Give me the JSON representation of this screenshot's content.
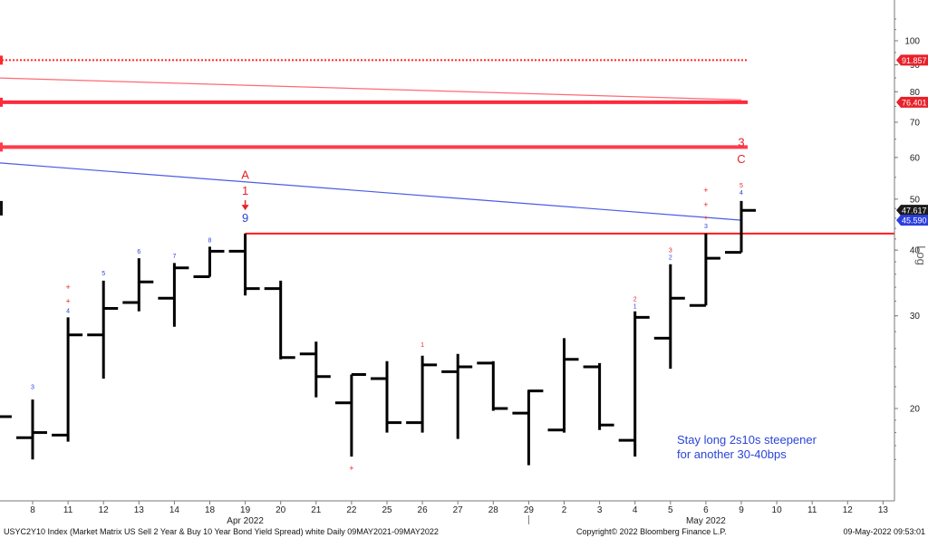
{
  "chart_data": {
    "type": "ohlc",
    "y_scale": "log",
    "y_axis_label": "Log",
    "ylim": [
      15,
      115
    ],
    "y_ticks": [
      20,
      30,
      40,
      50,
      60,
      70,
      80,
      90,
      100
    ],
    "x_labels": [
      "8",
      "11",
      "12",
      "13",
      "14",
      "18",
      "19",
      "20",
      "21",
      "22",
      "25",
      "26",
      "27",
      "28",
      "29",
      "2",
      "3",
      "4",
      "5",
      "6",
      "9",
      "10",
      "11",
      "12",
      "13"
    ],
    "month_labels": [
      {
        "text": "Apr 2022",
        "at_index": 6
      },
      {
        "text": "May 2022",
        "at_index": 19
      }
    ],
    "bars": [
      {
        "i": -1,
        "o": 19.3,
        "h": 19.3,
        "l": 19.3,
        "c": 19.3
      },
      {
        "i": 0,
        "o": 17.6,
        "h": 20.8,
        "l": 16.0,
        "c": 18.0
      },
      {
        "i": 1,
        "o": 17.8,
        "h": 29.8,
        "l": 17.3,
        "c": 27.6
      },
      {
        "i": 2,
        "o": 27.6,
        "h": 35.0,
        "l": 22.8,
        "c": 31.0
      },
      {
        "i": 3,
        "o": 31.8,
        "h": 38.6,
        "l": 30.6,
        "c": 34.8
      },
      {
        "i": 4,
        "o": 32.4,
        "h": 37.8,
        "l": 28.6,
        "c": 37.0
      },
      {
        "i": 5,
        "o": 35.6,
        "h": 40.6,
        "l": 35.6,
        "c": 39.8
      },
      {
        "i": 6,
        "o": 39.8,
        "h": 43.0,
        "l": 32.8,
        "c": 33.8
      },
      {
        "i": 7,
        "o": 33.8,
        "h": 35.0,
        "l": 24.8,
        "c": 25.0
      },
      {
        "i": 8,
        "o": 25.4,
        "h": 26.8,
        "l": 21.0,
        "c": 23.0
      },
      {
        "i": 9,
        "o": 20.5,
        "h": 23.2,
        "l": 16.2,
        "c": 23.2
      },
      {
        "i": 10,
        "o": 22.8,
        "h": 24.6,
        "l": 18.0,
        "c": 18.8
      },
      {
        "i": 11,
        "o": 18.8,
        "h": 25.2,
        "l": 18.0,
        "c": 24.2
      },
      {
        "i": 12,
        "o": 23.5,
        "h": 25.4,
        "l": 17.5,
        "c": 24.0
      },
      {
        "i": 13,
        "o": 24.4,
        "h": 24.6,
        "l": 19.8,
        "c": 20.0
      },
      {
        "i": 14,
        "o": 19.6,
        "h": 21.7,
        "l": 15.6,
        "c": 21.6
      },
      {
        "i": 15,
        "o": 18.2,
        "h": 27.2,
        "l": 18.0,
        "c": 24.8
      },
      {
        "i": 16,
        "o": 24.0,
        "h": 24.4,
        "l": 18.2,
        "c": 18.6
      },
      {
        "i": 17,
        "o": 17.4,
        "h": 30.6,
        "l": 16.2,
        "c": 29.8
      },
      {
        "i": 18,
        "o": 27.2,
        "h": 37.6,
        "l": 23.8,
        "c": 32.4
      },
      {
        "i": 19,
        "o": 31.4,
        "h": 43.0,
        "l": 31.4,
        "c": 38.6
      },
      {
        "i": 20,
        "o": 39.6,
        "h": 49.6,
        "l": 39.6,
        "c": 47.6
      }
    ],
    "horizontal_lines": [
      {
        "level": 91.857,
        "color": "#ff2a2a",
        "style": "dotted",
        "label": "91.857"
      },
      {
        "level": 76.401,
        "color": "#ff2a3c",
        "style": "thick",
        "label": "76.401"
      },
      {
        "level": 62.8,
        "color": "#ff3b4a",
        "style": "thick",
        "label": ""
      },
      {
        "level": 43.0,
        "color": "#ff1a1a",
        "style": "solid",
        "label": ""
      }
    ],
    "trendlines": [
      {
        "from": {
          "i": -1.8,
          "v": 85.3
        },
        "to": {
          "i": 20.0,
          "v": 77.2
        },
        "color": "#ff6a74"
      },
      {
        "from": {
          "i": -1.8,
          "v": 59.2
        },
        "to": {
          "i": 20.0,
          "v": 45.6
        },
        "color": "#4a5ce8"
      }
    ],
    "price_tags": [
      {
        "value": 91.857,
        "label": "91.857",
        "color": "#e8202a"
      },
      {
        "value": 76.401,
        "label": "76.401",
        "color": "#e8202a"
      },
      {
        "value": 47.617,
        "label": "47.617",
        "color": "#1a1a1a"
      },
      {
        "value": 45.59,
        "label": "45.590",
        "color": "#2b3fe0"
      }
    ],
    "annotations": [
      {
        "text": "A",
        "i": 6,
        "v": 54.6,
        "color": "#e8202a",
        "size": 13
      },
      {
        "text": "1",
        "i": 6,
        "v": 51.0,
        "color": "#e8202a",
        "size": 13
      },
      {
        "text": "9",
        "i": 6,
        "v": 45.3,
        "color": "#2b3fe0",
        "size": 13
      },
      {
        "text": "3",
        "i": 20,
        "v": 63.0,
        "color": "#e8202a",
        "size": 13
      },
      {
        "text": "C",
        "i": 20,
        "v": 58.6,
        "color": "#e8202a",
        "size": 13
      },
      {
        "text": "3",
        "i": 0,
        "v": 21.8,
        "color": "#2b3fe0",
        "size": 7
      },
      {
        "text": "+",
        "i": 1,
        "v": 33.6,
        "color": "#e8202a",
        "size": 9
      },
      {
        "text": "+",
        "i": 1,
        "v": 31.6,
        "color": "#e8202a",
        "size": 9
      },
      {
        "text": "4",
        "i": 1,
        "v": 30.4,
        "color": "#2b3fe0",
        "size": 7
      },
      {
        "text": "5",
        "i": 2,
        "v": 35.8,
        "color": "#2b3fe0",
        "size": 7
      },
      {
        "text": "6",
        "i": 3,
        "v": 39.4,
        "color": "#2b3fe0",
        "size": 7
      },
      {
        "text": "7",
        "i": 4,
        "v": 38.6,
        "color": "#2b3fe0",
        "size": 7
      },
      {
        "text": "8",
        "i": 5,
        "v": 41.4,
        "color": "#2b3fe0",
        "size": 7
      },
      {
        "text": "+",
        "i": 9,
        "v": 15.2,
        "color": "#e8202a",
        "size": 9
      },
      {
        "text": "1",
        "i": 11,
        "v": 26.2,
        "color": "#e8202a",
        "size": 7
      },
      {
        "text": "2",
        "i": 17,
        "v": 32.0,
        "color": "#e8202a",
        "size": 7
      },
      {
        "text": "1",
        "i": 17,
        "v": 31.0,
        "color": "#2b3fe0",
        "size": 7
      },
      {
        "text": "3",
        "i": 18,
        "v": 39.6,
        "color": "#e8202a",
        "size": 7
      },
      {
        "text": "2",
        "i": 18,
        "v": 38.4,
        "color": "#2b3fe0",
        "size": 7
      },
      {
        "text": "+",
        "i": 19,
        "v": 51.4,
        "color": "#e8202a",
        "size": 9
      },
      {
        "text": "+",
        "i": 19,
        "v": 48.2,
        "color": "#e8202a",
        "size": 9
      },
      {
        "text": "+",
        "i": 19,
        "v": 45.6,
        "color": "#e8202a",
        "size": 8
      },
      {
        "text": "3",
        "i": 19,
        "v": 44.0,
        "color": "#2b3fe0",
        "size": 7
      },
      {
        "text": "5",
        "i": 20,
        "v": 52.6,
        "color": "#e8202a",
        "size": 7
      },
      {
        "text": "4",
        "i": 20,
        "v": 51.0,
        "color": "#2b3fe0",
        "size": 7
      }
    ],
    "arrow": {
      "i": 6,
      "v": 48.2,
      "color": "#e8202a"
    },
    "text_note": [
      "Stay long 2s10s steepener",
      "for another 30-40bps"
    ],
    "grid": false,
    "legend": "none"
  },
  "footer": {
    "left": "USYC2Y10 Index (Market Matrix US Sell 2 Year & Buy 10 Year Bond Yield Spread) white  Daily 09MAY2021-09MAY2022",
    "center": "Copyright© 2022 Bloomberg Finance L.P.",
    "right": "09-May-2022 09:53:01"
  },
  "colors": {
    "bars": "#000000",
    "axis": "#7a7a7a",
    "red": "#e8202a",
    "blue": "#2b3fe0"
  }
}
